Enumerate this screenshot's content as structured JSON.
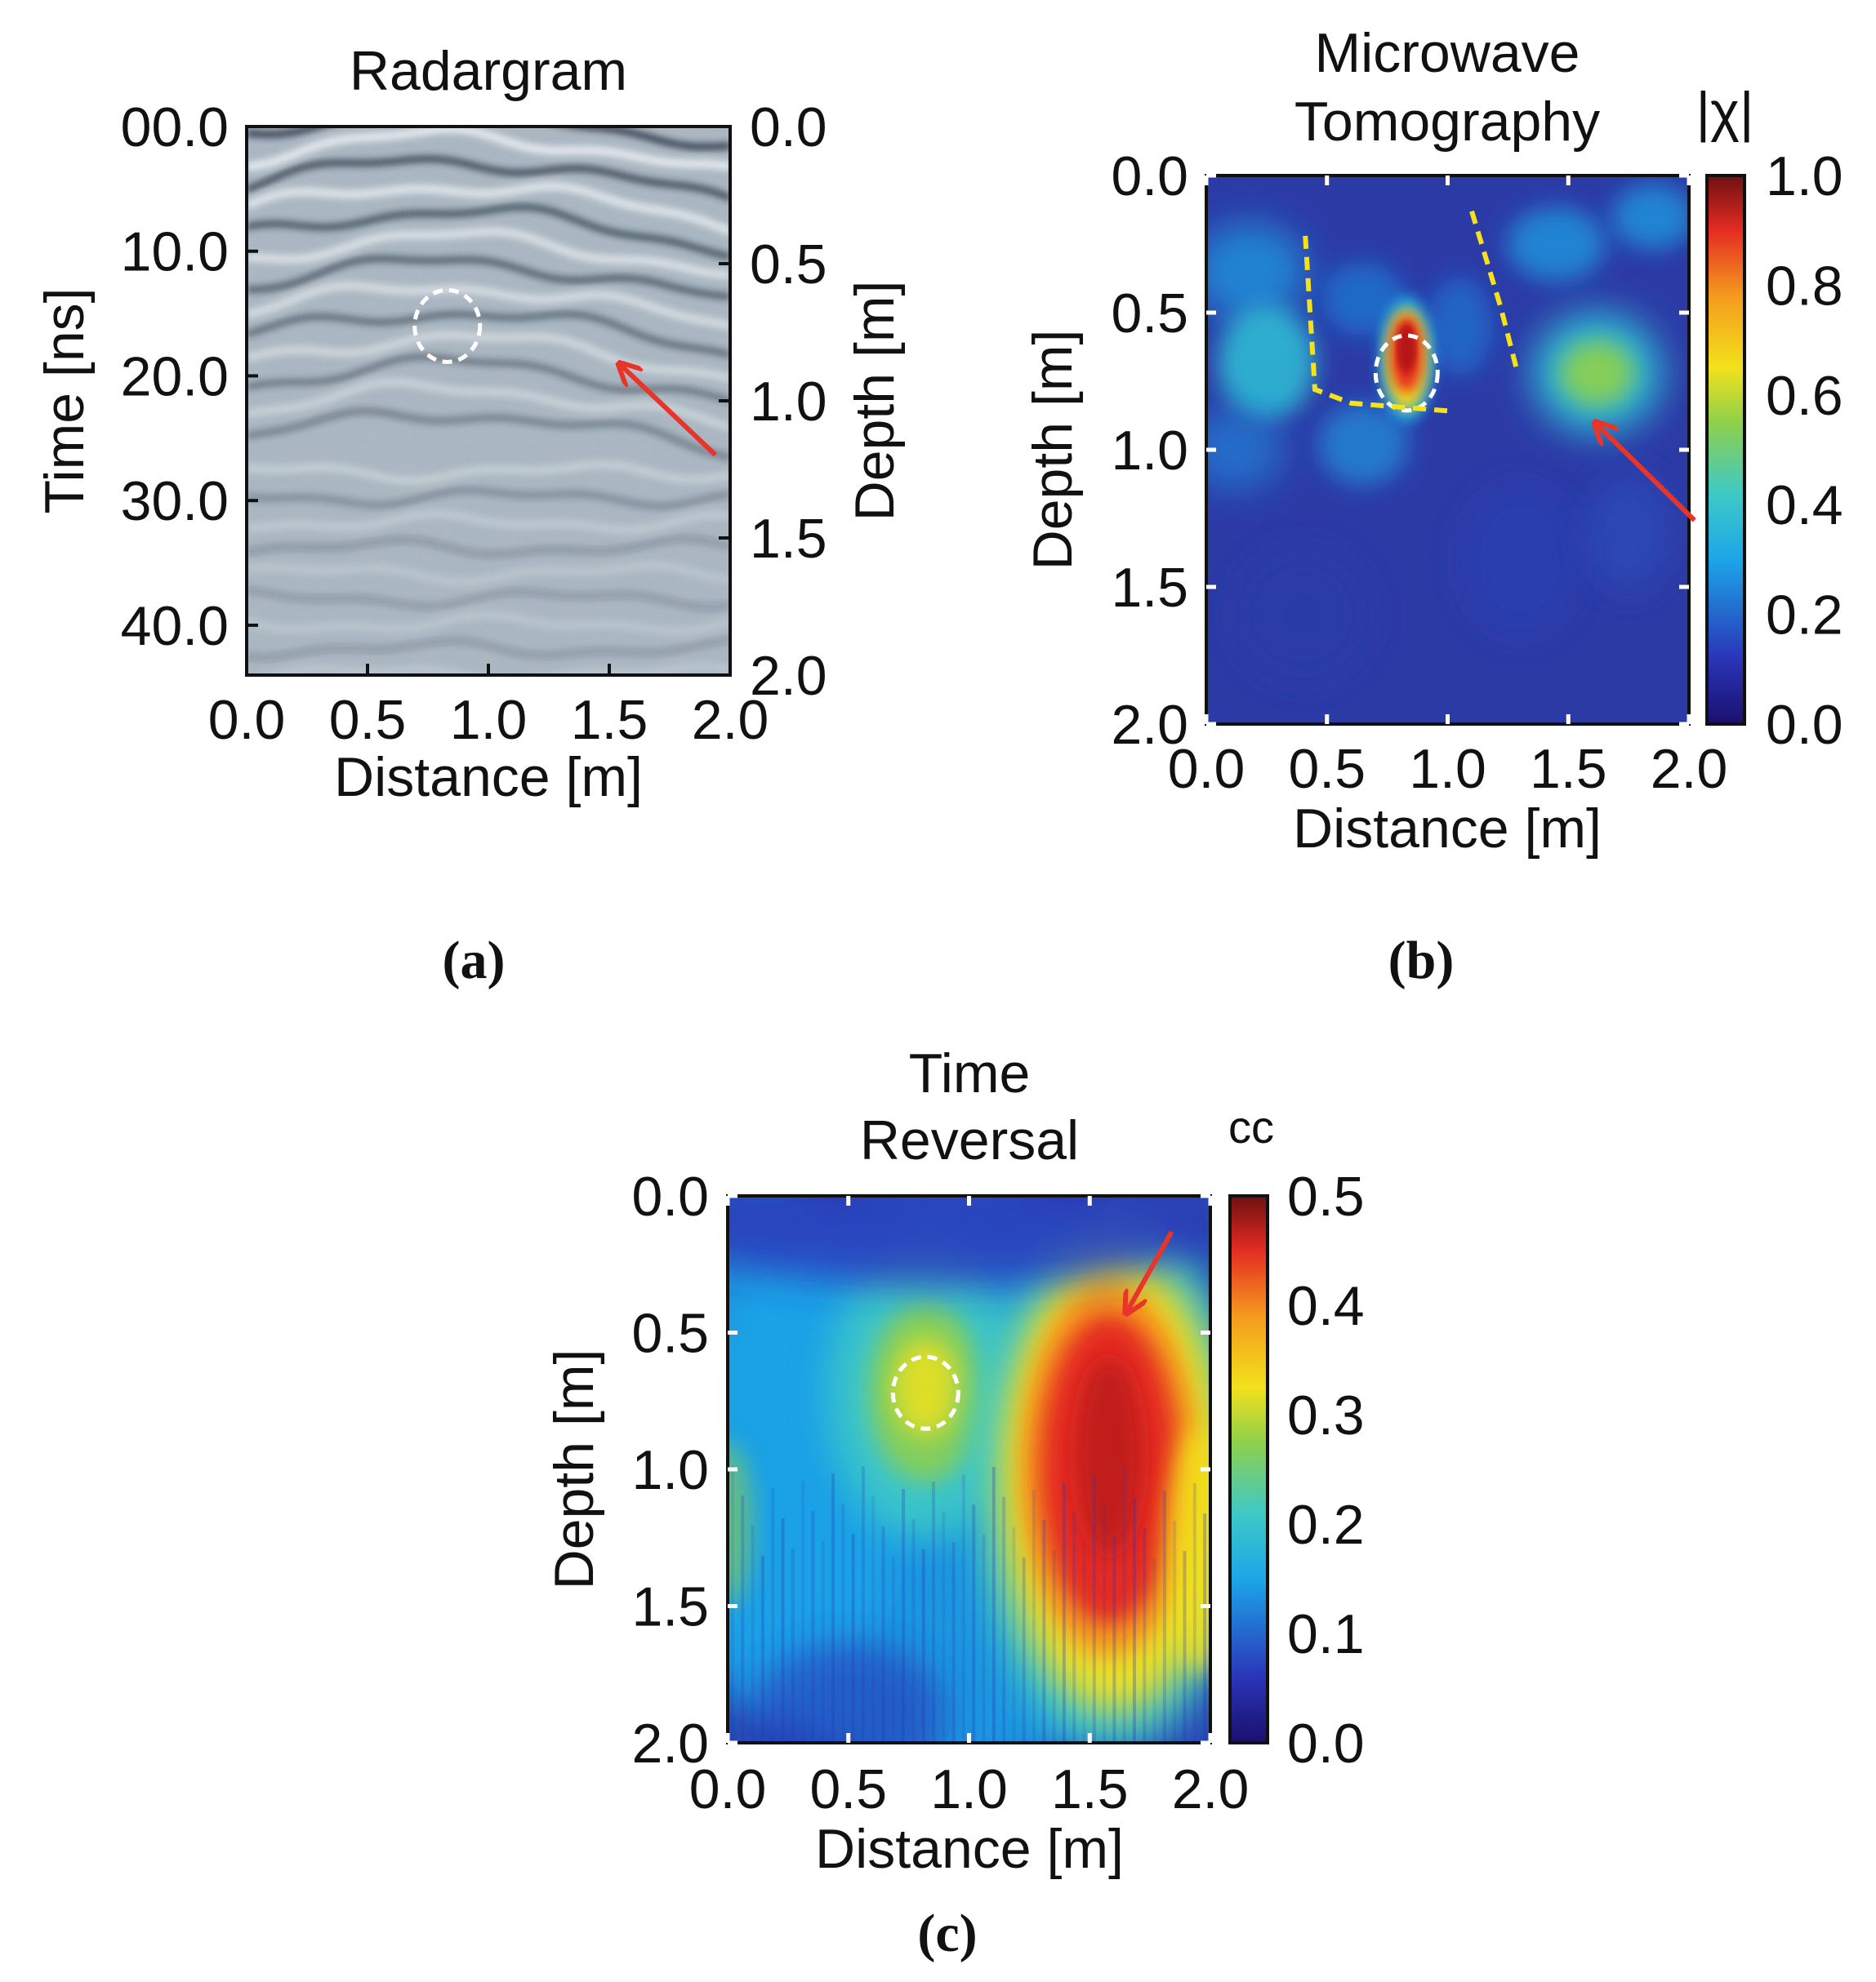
{
  "chart_data": [
    {
      "type": "heatmap",
      "panel": "a",
      "caption": "(a)",
      "title": "Radargram",
      "xlabel": "Distance [m]",
      "ylabel_left": "Time [ns]",
      "ylabel_right": "Depth [m]",
      "xlim": [
        0.0,
        2.0
      ],
      "x_ticks": [
        "0.0",
        "0.5",
        "1.0",
        "1.5",
        "2.0"
      ],
      "y_left_ticks": [
        "00.0",
        "10.0",
        "20.0",
        "30.0",
        "40.0"
      ],
      "y_left_values": [
        0,
        10,
        20,
        30,
        40
      ],
      "y_left_lim": [
        0,
        44
      ],
      "y_right_ticks": [
        "0.0",
        "0.5",
        "1.0",
        "1.5",
        "2.0"
      ],
      "y_right_lim": [
        0.0,
        2.0
      ],
      "colormap": "gray-blue",
      "hyperbola_apex": {
        "x": 0.83,
        "time_ns": 16
      },
      "annotations": [
        {
          "type": "dashed-circle",
          "color": "#ffffff",
          "x": 0.83,
          "time_ns": 16
        },
        {
          "type": "arrow",
          "color": "#e8352a",
          "to_x": 1.54,
          "to_time_ns": 19
        }
      ]
    },
    {
      "type": "heatmap",
      "panel": "b",
      "caption": "(b)",
      "title_lines": [
        "Microwave",
        "Tomography"
      ],
      "xlabel": "Distance [m]",
      "ylabel": "Depth [m]",
      "xlim": [
        0.0,
        2.0
      ],
      "ylim": [
        0.0,
        2.0
      ],
      "x_ticks": [
        "0.0",
        "0.5",
        "1.0",
        "1.5",
        "2.0"
      ],
      "y_ticks": [
        "0.0",
        "0.5",
        "1.0",
        "1.5",
        "2.0"
      ],
      "colorbar": {
        "label": "|χ|",
        "ticks": [
          "1.0",
          "0.8",
          "0.6",
          "0.4",
          "0.2",
          "0.0"
        ],
        "range": [
          0.0,
          1.0
        ]
      },
      "colormap": "jet",
      "features": [
        {
          "x": 0.83,
          "depth": 0.68,
          "value": 1.0
        },
        {
          "x": 1.62,
          "depth": 0.72,
          "value": 0.55
        },
        {
          "x": 0.25,
          "depth": 0.68,
          "value": 0.4
        }
      ],
      "annotations": [
        {
          "type": "dashed-circle",
          "color": "#ffffff",
          "x": 0.83,
          "depth": 0.72
        },
        {
          "type": "dashed-polyline",
          "color": "#f5e21a",
          "points": [
            [
              0.41,
              0.22
            ],
            [
              0.45,
              0.78
            ],
            [
              0.6,
              0.83
            ],
            [
              1.03,
              0.86
            ]
          ]
        },
        {
          "type": "dashed-polyline",
          "color": "#f5e21a",
          "points": [
            [
              1.1,
              0.13
            ],
            [
              1.22,
              0.48
            ],
            [
              1.29,
              0.72
            ]
          ]
        },
        {
          "type": "arrow",
          "color": "#e8352a",
          "to_x": 1.61,
          "to_depth": 0.9
        }
      ]
    },
    {
      "type": "heatmap",
      "panel": "c",
      "caption": "(c)",
      "title_lines": [
        "Time",
        "Reversal"
      ],
      "xlabel": "Distance [m]",
      "ylabel": "Depth [m]",
      "xlim": [
        0.0,
        2.0
      ],
      "ylim": [
        0.0,
        2.0
      ],
      "x_ticks": [
        "0.0",
        "0.5",
        "1.0",
        "1.5",
        "2.0"
      ],
      "y_ticks": [
        "0.0",
        "0.5",
        "1.0",
        "1.5",
        "2.0"
      ],
      "colorbar": {
        "label": "cc",
        "ticks": [
          "0.5",
          "0.4",
          "0.3",
          "0.2",
          "0.1",
          "0.0"
        ],
        "range": [
          0.0,
          0.5
        ]
      },
      "colormap": "jet",
      "features": [
        {
          "x": 1.58,
          "depth": 1.0,
          "value": 0.5
        },
        {
          "x": 0.82,
          "depth": 0.72,
          "value": 0.3
        }
      ],
      "annotations": [
        {
          "type": "dashed-circle",
          "color": "#ffffff",
          "x": 0.82,
          "depth": 0.72
        },
        {
          "type": "arrow",
          "color": "#e8352a",
          "to_x": 1.65,
          "to_depth": 0.43
        }
      ]
    }
  ]
}
